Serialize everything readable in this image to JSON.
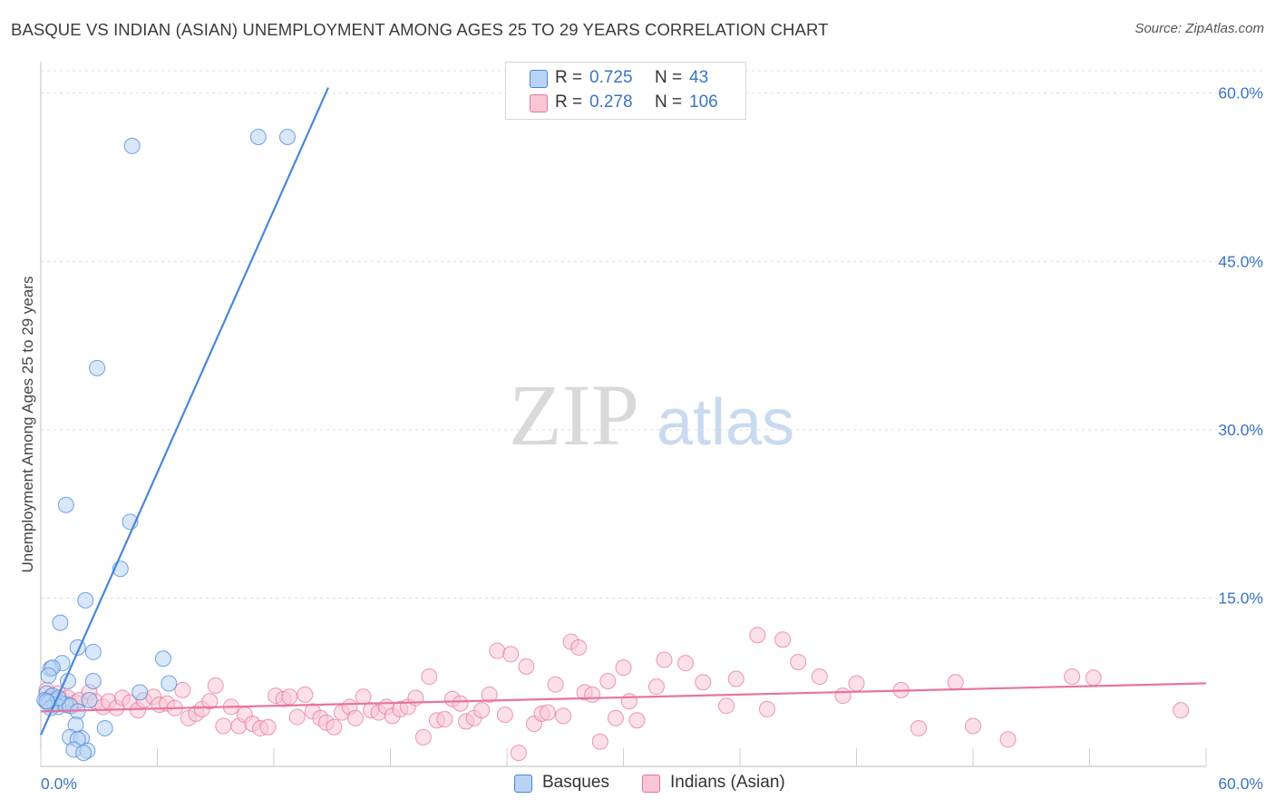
{
  "title": "BASQUE VS INDIAN (ASIAN) UNEMPLOYMENT AMONG AGES 25 TO 29 YEARS CORRELATION CHART",
  "source": "Source: ZipAtlas.com",
  "watermark": {
    "zip": "ZIP",
    "atlas": "atlas"
  },
  "legend_stats": [
    {
      "r_label": "R =",
      "r_value": "0.725",
      "n_label": "N =",
      "n_value": "43",
      "color": "#a9c8f0"
    },
    {
      "r_label": "R =",
      "r_value": "0.278",
      "n_label": "N =",
      "n_value": "106",
      "color": "#f6b8c9"
    }
  ],
  "chart_data": {
    "type": "scatter",
    "title": "BASQUE VS INDIAN (ASIAN) UNEMPLOYMENT AMONG AGES 25 TO 29 YEARS CORRELATION CHART",
    "xlabel": "",
    "ylabel": "Unemployment Among Ages 25 to 29 years",
    "xlim": [
      0,
      60
    ],
    "ylim": [
      0,
      62
    ],
    "x_tick_labels": [
      "0.0%",
      "60.0%"
    ],
    "y_ticks": [
      15,
      30,
      45,
      60
    ],
    "y_tick_labels": [
      "15.0%",
      "30.0%",
      "45.0%",
      "60.0%"
    ],
    "grid": true,
    "legend_position": "bottom",
    "series": [
      {
        "name": "Basques",
        "color": "#4a86d8",
        "fill": "#b8d3f4",
        "trend": {
          "x0": 0,
          "y0": 2.8,
          "x1": 14.8,
          "y1": 60.5
        },
        "points": [
          [
            4.7,
            55.3
          ],
          [
            11.2,
            56.1
          ],
          [
            12.7,
            56.1
          ],
          [
            2.9,
            35.5
          ],
          [
            1.3,
            23.3
          ],
          [
            4.6,
            21.8
          ],
          [
            4.1,
            17.6
          ],
          [
            2.3,
            14.8
          ],
          [
            1.0,
            12.8
          ],
          [
            1.9,
            10.6
          ],
          [
            2.7,
            10.2
          ],
          [
            6.3,
            9.6
          ],
          [
            1.1,
            9.2
          ],
          [
            0.5,
            8.7
          ],
          [
            0.6,
            8.8
          ],
          [
            0.4,
            8.1
          ],
          [
            1.4,
            7.6
          ],
          [
            2.7,
            7.6
          ],
          [
            6.6,
            7.4
          ],
          [
            5.1,
            6.6
          ],
          [
            0.3,
            6.5
          ],
          [
            0.6,
            6.3
          ],
          [
            2.5,
            5.9
          ],
          [
            0.8,
            5.9
          ],
          [
            0.2,
            5.9
          ],
          [
            0.4,
            5.7
          ],
          [
            1.1,
            5.6
          ],
          [
            0.7,
            5.5
          ],
          [
            1.3,
            5.5
          ],
          [
            0.9,
            5.3
          ],
          [
            1.5,
            5.4
          ],
          [
            0.5,
            5.2
          ],
          [
            1.9,
            4.9
          ],
          [
            3.3,
            3.4
          ],
          [
            1.8,
            3.7
          ],
          [
            1.5,
            2.6
          ],
          [
            2.1,
            2.5
          ],
          [
            1.9,
            2.4
          ],
          [
            1.7,
            1.5
          ],
          [
            2.4,
            1.4
          ],
          [
            2.2,
            1.2
          ],
          [
            0.9,
            6.1
          ],
          [
            0.3,
            5.8
          ]
        ]
      },
      {
        "name": "Indians (Asian)",
        "color": "#e8749c",
        "fill": "#f8c6d4",
        "trend": {
          "x0": 0,
          "y0": 4.9,
          "x1": 60,
          "y1": 7.4
        },
        "points": [
          [
            0.3,
            6.8
          ],
          [
            0.5,
            6.2
          ],
          [
            0.7,
            5.6
          ],
          [
            0.9,
            6.5
          ],
          [
            1.1,
            5.9
          ],
          [
            1.4,
            6.1
          ],
          [
            1.6,
            5.4
          ],
          [
            1.8,
            5.7
          ],
          [
            2.0,
            5.9
          ],
          [
            2.5,
            6.6
          ],
          [
            2.8,
            5.8
          ],
          [
            3.2,
            5.3
          ],
          [
            3.5,
            5.8
          ],
          [
            3.9,
            5.2
          ],
          [
            4.2,
            6.1
          ],
          [
            4.6,
            5.7
          ],
          [
            5.0,
            5.0
          ],
          [
            5.3,
            5.9
          ],
          [
            5.8,
            6.2
          ],
          [
            6.1,
            5.5
          ],
          [
            6.5,
            5.6
          ],
          [
            6.9,
            5.2
          ],
          [
            7.3,
            6.8
          ],
          [
            7.6,
            4.3
          ],
          [
            8.0,
            4.7
          ],
          [
            8.3,
            5.1
          ],
          [
            8.7,
            5.8
          ],
          [
            9.0,
            7.2
          ],
          [
            9.4,
            3.6
          ],
          [
            9.8,
            5.3
          ],
          [
            10.2,
            3.6
          ],
          [
            10.5,
            4.6
          ],
          [
            10.9,
            3.8
          ],
          [
            11.3,
            3.4
          ],
          [
            11.7,
            3.5
          ],
          [
            12.1,
            6.3
          ],
          [
            12.5,
            6.0
          ],
          [
            12.8,
            6.2
          ],
          [
            13.2,
            4.4
          ],
          [
            13.6,
            6.4
          ],
          [
            14.0,
            4.9
          ],
          [
            14.4,
            4.3
          ],
          [
            14.7,
            3.9
          ],
          [
            15.1,
            3.5
          ],
          [
            15.5,
            4.8
          ],
          [
            15.9,
            5.3
          ],
          [
            16.2,
            4.3
          ],
          [
            16.6,
            6.2
          ],
          [
            17.0,
            5.0
          ],
          [
            17.4,
            4.8
          ],
          [
            17.8,
            5.3
          ],
          [
            18.1,
            4.5
          ],
          [
            18.5,
            5.1
          ],
          [
            18.9,
            5.3
          ],
          [
            19.3,
            6.1
          ],
          [
            19.7,
            2.6
          ],
          [
            20.0,
            8.0
          ],
          [
            20.4,
            4.1
          ],
          [
            20.8,
            4.2
          ],
          [
            21.2,
            6.0
          ],
          [
            21.6,
            5.6
          ],
          [
            21.9,
            4.0
          ],
          [
            22.3,
            4.3
          ],
          [
            22.7,
            5.0
          ],
          [
            23.1,
            6.4
          ],
          [
            23.5,
            10.3
          ],
          [
            23.9,
            4.6
          ],
          [
            24.2,
            10.0
          ],
          [
            24.6,
            1.2
          ],
          [
            25.0,
            8.9
          ],
          [
            25.4,
            3.8
          ],
          [
            25.8,
            4.7
          ],
          [
            26.1,
            4.8
          ],
          [
            26.5,
            7.3
          ],
          [
            26.9,
            4.5
          ],
          [
            27.3,
            11.1
          ],
          [
            27.7,
            10.6
          ],
          [
            28.0,
            6.6
          ],
          [
            28.4,
            6.4
          ],
          [
            28.8,
            2.2
          ],
          [
            29.2,
            7.6
          ],
          [
            29.6,
            4.3
          ],
          [
            30.0,
            8.8
          ],
          [
            30.3,
            5.8
          ],
          [
            30.7,
            4.1
          ],
          [
            32.1,
            9.5
          ],
          [
            33.2,
            9.2
          ],
          [
            34.1,
            7.5
          ],
          [
            35.3,
            5.4
          ],
          [
            35.8,
            7.8
          ],
          [
            36.9,
            11.7
          ],
          [
            38.2,
            11.3
          ],
          [
            39.0,
            9.3
          ],
          [
            40.1,
            8.0
          ],
          [
            41.3,
            6.3
          ],
          [
            42.0,
            7.4
          ],
          [
            45.2,
            3.4
          ],
          [
            47.1,
            7.5
          ],
          [
            48.0,
            3.6
          ],
          [
            49.8,
            2.4
          ],
          [
            53.1,
            8.0
          ],
          [
            54.2,
            7.9
          ],
          [
            58.7,
            5.0
          ],
          [
            31.7,
            7.1
          ],
          [
            37.4,
            5.1
          ],
          [
            44.3,
            6.8
          ]
        ]
      }
    ]
  }
}
